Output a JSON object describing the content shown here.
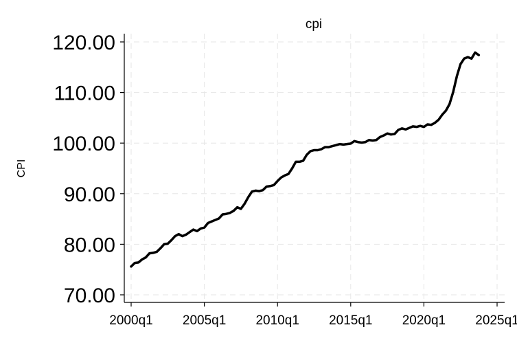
{
  "chart_data": {
    "type": "line",
    "title": "cpi",
    "xlabel": "",
    "ylabel": "CPI",
    "xlim": [
      "2000q1",
      "2025q1"
    ],
    "ylim": [
      70,
      120
    ],
    "x_ticks": [
      "2000q1",
      "2005q1",
      "2010q1",
      "2015q1",
      "2020q1",
      "2025q1"
    ],
    "y_ticks": [
      "70.00",
      "80.00",
      "90.00",
      "100.00",
      "110.00",
      "120.00"
    ],
    "grid": true,
    "series": [
      {
        "name": "",
        "x": [
          "2000q1",
          "2000q2",
          "2000q3",
          "2000q4",
          "2001q1",
          "2001q2",
          "2001q3",
          "2001q4",
          "2002q1",
          "2002q2",
          "2002q3",
          "2002q4",
          "2003q1",
          "2003q2",
          "2003q3",
          "2003q4",
          "2004q1",
          "2004q2",
          "2004q3",
          "2004q4",
          "2005q1",
          "2005q2",
          "2005q3",
          "2005q4",
          "2006q1",
          "2006q2",
          "2006q3",
          "2006q4",
          "2007q1",
          "2007q2",
          "2007q3",
          "2007q4",
          "2008q1",
          "2008q2",
          "2008q3",
          "2008q4",
          "2009q1",
          "2009q2",
          "2009q3",
          "2009q4",
          "2010q1",
          "2010q2",
          "2010q3",
          "2010q4",
          "2011q1",
          "2011q2",
          "2011q3",
          "2011q4",
          "2012q1",
          "2012q2",
          "2012q3",
          "2012q4",
          "2013q1",
          "2013q2",
          "2013q3",
          "2013q4",
          "2014q1",
          "2014q2",
          "2014q3",
          "2014q4",
          "2015q1",
          "2015q2",
          "2015q3",
          "2015q4",
          "2016q1",
          "2016q2",
          "2016q3",
          "2016q4",
          "2017q1",
          "2017q2",
          "2017q3",
          "2017q4",
          "2018q1",
          "2018q2",
          "2018q3",
          "2018q4",
          "2019q1",
          "2019q2",
          "2019q3",
          "2019q4",
          "2020q1",
          "2020q2",
          "2020q3",
          "2020q4",
          "2021q1",
          "2021q2",
          "2021q3",
          "2021q4",
          "2022q1",
          "2022q2",
          "2022q3",
          "2022q4",
          "2023q1",
          "2023q2",
          "2023q3",
          "2023q4"
        ],
        "values": [
          75.6,
          76.3,
          76.4,
          77.0,
          77.4,
          78.2,
          78.3,
          78.5,
          79.2,
          80.0,
          80.1,
          80.8,
          81.6,
          82.0,
          81.6,
          81.9,
          82.4,
          82.9,
          82.6,
          83.1,
          83.3,
          84.2,
          84.5,
          84.8,
          85.1,
          85.9,
          86.0,
          86.2,
          86.6,
          87.3,
          87.0,
          88.0,
          89.3,
          90.4,
          90.6,
          90.5,
          90.7,
          91.4,
          91.5,
          91.7,
          92.5,
          93.2,
          93.6,
          93.9,
          95.0,
          96.3,
          96.3,
          96.5,
          97.7,
          98.4,
          98.6,
          98.6,
          98.8,
          99.2,
          99.2,
          99.4,
          99.6,
          99.8,
          99.7,
          99.8,
          99.9,
          100.4,
          100.2,
          100.1,
          100.2,
          100.6,
          100.5,
          100.6,
          101.2,
          101.5,
          101.9,
          101.7,
          101.8,
          102.6,
          102.9,
          102.7,
          103.0,
          103.3,
          103.2,
          103.4,
          103.2,
          103.7,
          103.6,
          104.0,
          104.6,
          105.6,
          106.4,
          107.7,
          110.1,
          113.2,
          115.6,
          116.7,
          117.0,
          116.7,
          117.9,
          117.4
        ]
      }
    ]
  }
}
